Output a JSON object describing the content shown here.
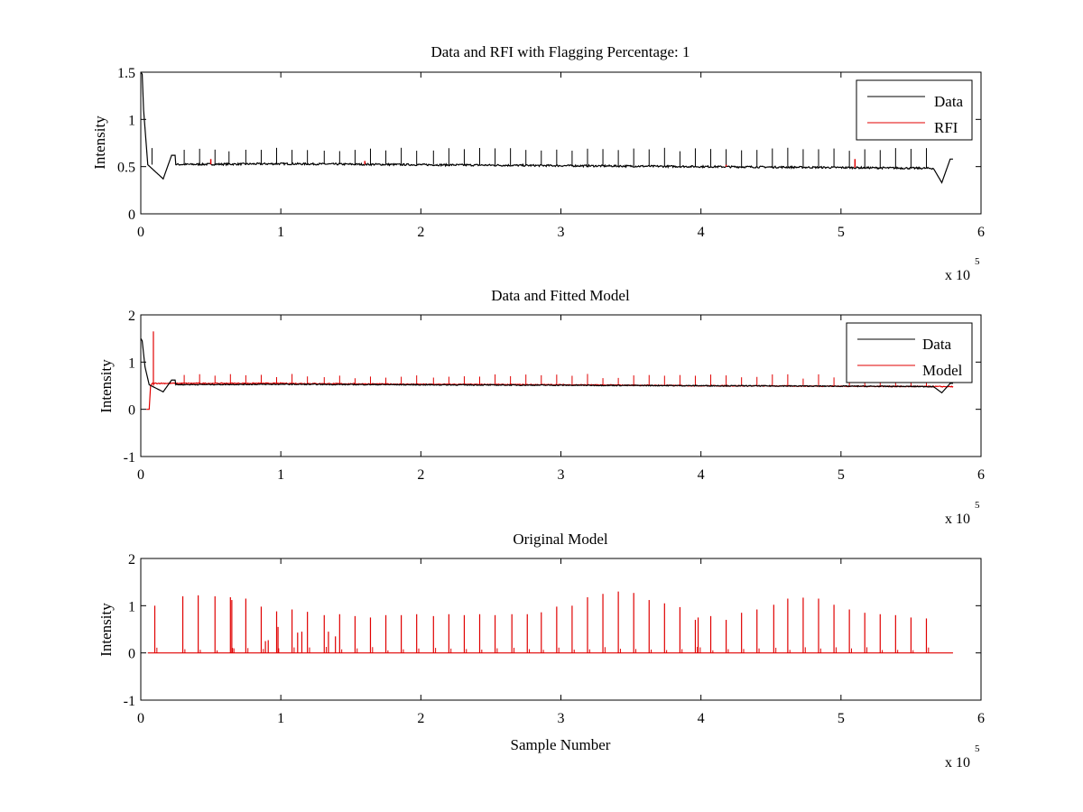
{
  "chart_data": [
    {
      "type": "line",
      "title": "Data and RFI with Flagging Percentage: 1",
      "xlabel": "",
      "ylabel": "Intensity",
      "xlim": [
        0,
        6
      ],
      "ylim": [
        0,
        1.5
      ],
      "xticks": [
        "0",
        "1",
        "2",
        "3",
        "4",
        "5",
        "6"
      ],
      "yticks": [
        "0",
        "0.5",
        "1",
        "1.5"
      ],
      "x_exponent": {
        "base": "x 10",
        "power": "5"
      },
      "legend": "top-right",
      "colors": {
        "Data": "#000000",
        "RFI": "#e00000"
      },
      "series": [
        {
          "name": "Data",
          "baseline": [
            [
              0,
              0.52
            ],
            [
              1,
              0.53
            ],
            [
              2,
              0.52
            ],
            [
              3,
              0.51
            ],
            [
              4,
              0.5
            ],
            [
              5,
              0.49
            ],
            [
              5.8,
              0.48
            ]
          ],
          "features": [
            [
              0.0,
              1.5
            ],
            [
              0.01,
              1.48
            ],
            [
              0.02,
              1.1
            ],
            [
              0.05,
              0.52
            ],
            [
              0.16,
              0.37
            ],
            [
              0.22,
              0.62
            ],
            [
              5.72,
              0.33
            ],
            [
              5.78,
              0.58
            ]
          ],
          "spike_x": [
            0.08,
            0.31,
            0.42,
            0.53,
            0.63,
            0.75,
            0.86,
            0.97,
            1.08,
            1.19,
            1.31,
            1.42,
            1.53,
            1.64,
            1.75,
            1.86,
            1.97,
            2.09,
            2.2,
            2.31,
            2.42,
            2.53,
            2.64,
            2.75,
            2.86,
            2.97,
            3.08,
            3.19,
            3.3,
            3.41,
            3.52,
            3.63,
            3.74,
            3.85,
            3.96,
            4.07,
            4.18,
            4.29,
            4.4,
            4.51,
            4.62,
            4.73,
            4.84,
            4.95,
            5.06,
            5.17,
            5.28,
            5.39,
            5.5,
            5.61
          ],
          "spike_peak": 0.68
        },
        {
          "name": "RFI",
          "flag_x": [
            0.5,
            1.6,
            4.18,
            5.1
          ],
          "flag_y": [
            0.58,
            0.56,
            0.52,
            0.58
          ]
        }
      ]
    },
    {
      "type": "line",
      "title": "Data and Fitted Model",
      "xlabel": "",
      "ylabel": "Intensity",
      "xlim": [
        0,
        6
      ],
      "ylim": [
        -1,
        2
      ],
      "xticks": [
        "0",
        "1",
        "2",
        "3",
        "4",
        "5",
        "6"
      ],
      "yticks": [
        "-1",
        "0",
        "1",
        "2"
      ],
      "x_exponent": {
        "base": "x 10",
        "power": "5"
      },
      "legend": "top-right",
      "colors": {
        "Data": "#000000",
        "Model": "#e00000"
      },
      "series": [
        {
          "name": "Data",
          "baseline": [
            [
              0,
              0.52
            ],
            [
              1,
              0.53
            ],
            [
              2,
              0.52
            ],
            [
              3,
              0.51
            ],
            [
              4,
              0.5
            ],
            [
              5,
              0.49
            ],
            [
              5.8,
              0.48
            ]
          ],
          "features": [
            [
              0.0,
              1.5
            ],
            [
              0.01,
              1.45
            ],
            [
              0.03,
              0.9
            ],
            [
              0.06,
              0.52
            ],
            [
              0.16,
              0.37
            ],
            [
              0.22,
              0.62
            ],
            [
              5.72,
              0.35
            ],
            [
              5.78,
              0.55
            ]
          ]
        },
        {
          "name": "Model",
          "baseline": [
            [
              0,
              0.55
            ],
            [
              1,
              0.55
            ],
            [
              2,
              0.53
            ],
            [
              3,
              0.52
            ],
            [
              4,
              0.5
            ],
            [
              5,
              0.49
            ],
            [
              5.8,
              0.48
            ]
          ],
          "start_drop": [
            [
              0.04,
              0.0
            ],
            [
              0.06,
              0.0
            ],
            [
              0.07,
              0.5
            ]
          ],
          "big_spike": [
            0.09,
            1.65
          ],
          "spike_x": [
            0.31,
            0.42,
            0.53,
            0.64,
            0.75,
            0.86,
            0.97,
            1.08,
            1.19,
            1.31,
            1.42,
            1.53,
            1.64,
            1.75,
            1.86,
            1.97,
            2.09,
            2.2,
            2.31,
            2.42,
            2.53,
            2.64,
            2.75,
            2.86,
            2.97,
            3.08,
            3.19,
            3.3,
            3.41,
            3.52,
            3.63,
            3.74,
            3.85,
            3.96,
            4.07,
            4.18,
            4.29,
            4.4,
            4.51,
            4.62,
            4.73,
            4.84,
            4.95,
            5.06,
            5.17,
            5.28,
            5.39,
            5.5,
            5.61
          ],
          "spike_peak": 0.7
        }
      ]
    },
    {
      "type": "line",
      "title": "Original Model",
      "xlabel": "Sample Number",
      "ylabel": "Intensity",
      "xlim": [
        0,
        6
      ],
      "ylim": [
        -1,
        2
      ],
      "xticks": [
        "0",
        "1",
        "2",
        "3",
        "4",
        "5",
        "6"
      ],
      "yticks": [
        "-1",
        "0",
        "1",
        "2"
      ],
      "x_exponent": {
        "base": "x 10",
        "power": "5"
      },
      "colors": {
        "line": "#e00000"
      },
      "series": [
        {
          "x_range": [
            0.05,
            5.8
          ],
          "baseline": 0,
          "spikes": [
            [
              0.1,
              1.0
            ],
            [
              0.3,
              1.2
            ],
            [
              0.41,
              1.22
            ],
            [
              0.53,
              1.2
            ],
            [
              0.64,
              1.18
            ],
            [
              0.65,
              1.12
            ],
            [
              0.75,
              1.15
            ],
            [
              0.86,
              0.98
            ],
            [
              0.89,
              0.25
            ],
            [
              0.91,
              0.27
            ],
            [
              0.97,
              0.88
            ],
            [
              0.98,
              0.55
            ],
            [
              1.08,
              0.92
            ],
            [
              1.12,
              0.43
            ],
            [
              1.15,
              0.45
            ],
            [
              1.19,
              0.87
            ],
            [
              1.31,
              0.8
            ],
            [
              1.34,
              0.45
            ],
            [
              1.42,
              0.82
            ],
            [
              1.39,
              0.35
            ],
            [
              1.53,
              0.78
            ],
            [
              1.64,
              0.75
            ],
            [
              1.75,
              0.8
            ],
            [
              1.86,
              0.8
            ],
            [
              1.97,
              0.82
            ],
            [
              2.09,
              0.78
            ],
            [
              2.2,
              0.82
            ],
            [
              2.31,
              0.8
            ],
            [
              2.42,
              0.82
            ],
            [
              2.53,
              0.8
            ],
            [
              2.65,
              0.82
            ],
            [
              2.76,
              0.82
            ],
            [
              2.86,
              0.86
            ],
            [
              2.97,
              0.98
            ],
            [
              3.08,
              1.0
            ],
            [
              3.19,
              1.18
            ],
            [
              3.3,
              1.25
            ],
            [
              3.41,
              1.3
            ],
            [
              3.52,
              1.27
            ],
            [
              3.63,
              1.12
            ],
            [
              3.74,
              1.05
            ],
            [
              3.85,
              0.97
            ],
            [
              3.96,
              0.7
            ],
            [
              3.98,
              0.75
            ],
            [
              4.07,
              0.78
            ],
            [
              4.18,
              0.7
            ],
            [
              4.29,
              0.85
            ],
            [
              4.4,
              0.92
            ],
            [
              4.52,
              1.02
            ],
            [
              4.62,
              1.15
            ],
            [
              4.73,
              1.17
            ],
            [
              4.84,
              1.15
            ],
            [
              4.95,
              1.02
            ],
            [
              5.06,
              0.92
            ],
            [
              5.17,
              0.85
            ],
            [
              5.28,
              0.82
            ],
            [
              5.39,
              0.8
            ],
            [
              5.5,
              0.75
            ],
            [
              5.61,
              0.73
            ]
          ]
        }
      ]
    }
  ],
  "legend_entries": [
    [
      "Data",
      "RFI"
    ],
    [
      "Data",
      "Model"
    ]
  ]
}
